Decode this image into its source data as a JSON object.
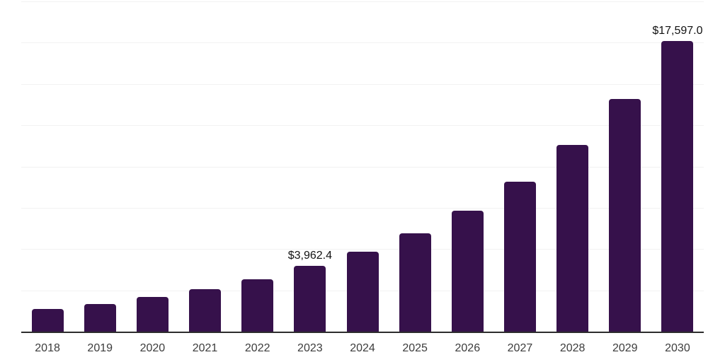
{
  "chart_data": {
    "type": "bar",
    "title": "",
    "xlabel": "",
    "ylabel": "",
    "categories": [
      "2018",
      "2019",
      "2020",
      "2021",
      "2022",
      "2023",
      "2024",
      "2025",
      "2026",
      "2027",
      "2028",
      "2029",
      "2030"
    ],
    "values": [
      1350,
      1650,
      2080,
      2550,
      3150,
      3962.4,
      4820,
      5960,
      7340,
      9100,
      11320,
      14100,
      17597
    ],
    "data_labels": {
      "2023": "$3,962.4",
      "2030": "$17,597.0"
    },
    "ylim": [
      0,
      20000
    ],
    "gridline_step": 2500,
    "grid": "horizontal",
    "legend": false
  },
  "colors": {
    "bar": "#36114b",
    "gridline": "#f2f2f2",
    "axis_line": "#2d2d2d",
    "tick_label": "#3c3c3c",
    "data_label": "#111111",
    "background": "#ffffff"
  }
}
